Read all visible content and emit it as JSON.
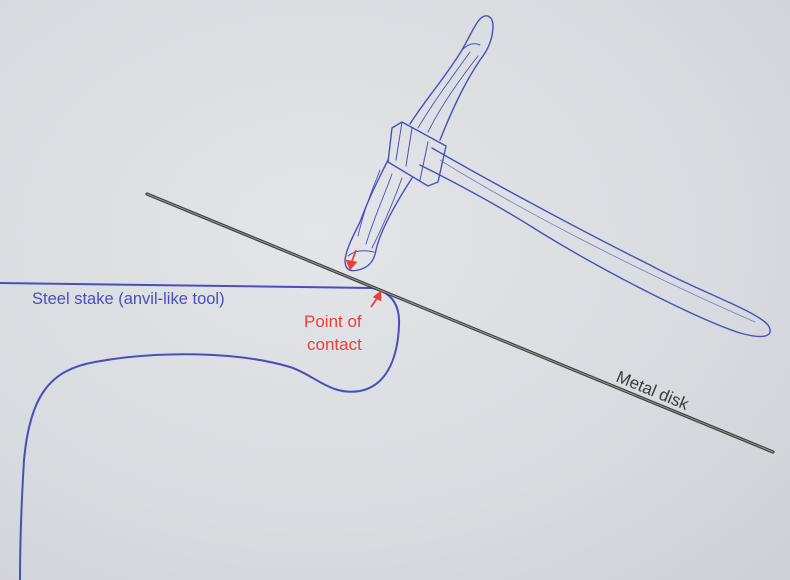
{
  "labels": {
    "stake": "Steel stake (anvil-like tool)",
    "contact_line1": "Point of",
    "contact_line2": "contact",
    "disk": "Metal disk"
  },
  "colors": {
    "outline_blue": "#4a4fb8",
    "contact_red": "#e8413a",
    "disk_dark": "#4a4a4a",
    "disk_text": "#3a3a3a"
  },
  "icons": {
    "hammer": "hammer-icon",
    "stake": "stake-icon",
    "disk": "disk-icon",
    "arrow": "arrow-icon"
  }
}
